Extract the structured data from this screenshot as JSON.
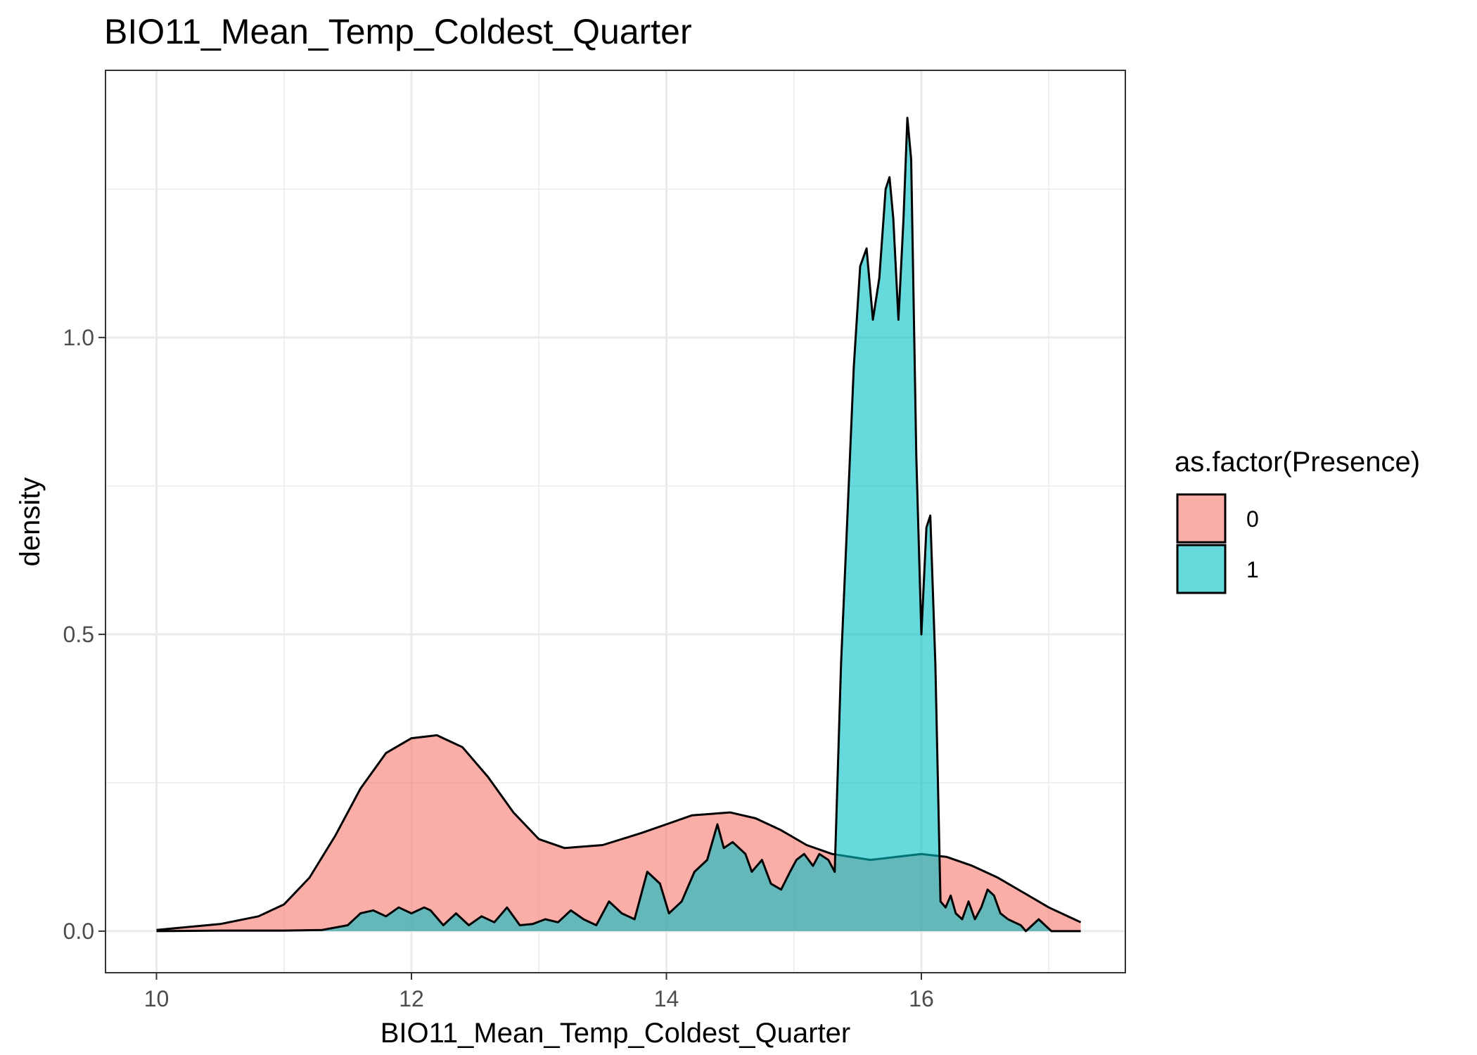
{
  "chart_data": {
    "type": "area",
    "subtype": "density",
    "title": "BIO11_Mean_Temp_Coldest_Quarter",
    "xlabel": "BIO11_Mean_Temp_Coldest_Quarter",
    "ylabel": "density",
    "xlim": [
      9.6,
      17.6
    ],
    "ylim": [
      -0.07,
      1.45
    ],
    "x_ticks": [
      10,
      12,
      14,
      16
    ],
    "x_tick_labels": [
      "10",
      "12",
      "14",
      "16"
    ],
    "y_ticks": [
      0.0,
      0.5,
      1.0
    ],
    "y_tick_labels": [
      "0.0",
      "0.5",
      "1.0"
    ],
    "x_minor_grid": [
      11,
      13,
      15,
      17
    ],
    "y_minor_grid": [
      0.25,
      0.75,
      1.25
    ],
    "grid": true,
    "legend": {
      "title": "as.factor(Presence)",
      "position": "right",
      "entries": [
        "0",
        "1"
      ]
    },
    "colors": {
      "series_0": "#F8766D",
      "series_1": "#00BFC4",
      "outline": "#000000",
      "grid": "#ebebeb",
      "panel_border": "#333333"
    },
    "fill_opacity": 0.6,
    "series": [
      {
        "name": "0",
        "x": [
          10.0,
          10.5,
          10.8,
          11.0,
          11.2,
          11.4,
          11.6,
          11.8,
          12.0,
          12.2,
          12.4,
          12.6,
          12.8,
          13.0,
          13.2,
          13.5,
          13.8,
          14.0,
          14.2,
          14.5,
          14.7,
          14.9,
          15.1,
          15.3,
          15.6,
          15.8,
          16.0,
          16.2,
          16.4,
          16.6,
          16.8,
          17.0,
          17.25
        ],
        "y": [
          0.002,
          0.012,
          0.025,
          0.045,
          0.09,
          0.16,
          0.24,
          0.3,
          0.325,
          0.33,
          0.31,
          0.26,
          0.2,
          0.155,
          0.14,
          0.145,
          0.165,
          0.18,
          0.195,
          0.2,
          0.19,
          0.17,
          0.145,
          0.13,
          0.12,
          0.125,
          0.13,
          0.125,
          0.11,
          0.09,
          0.065,
          0.04,
          0.015
        ]
      },
      {
        "name": "1",
        "x": [
          10.0,
          10.5,
          11.0,
          11.3,
          11.5,
          11.6,
          11.7,
          11.8,
          11.9,
          12.0,
          12.1,
          12.15,
          12.25,
          12.35,
          12.45,
          12.55,
          12.65,
          12.75,
          12.85,
          12.95,
          13.05,
          13.15,
          13.25,
          13.35,
          13.45,
          13.55,
          13.65,
          13.75,
          13.85,
          13.95,
          14.02,
          14.12,
          14.22,
          14.32,
          14.4,
          14.45,
          14.52,
          14.57,
          14.62,
          14.67,
          14.75,
          14.82,
          14.9,
          14.97,
          15.02,
          15.08,
          15.15,
          15.2,
          15.27,
          15.32,
          15.37,
          15.42,
          15.47,
          15.52,
          15.57,
          15.62,
          15.67,
          15.72,
          15.75,
          15.78,
          15.82,
          15.86,
          15.89,
          15.92,
          15.96,
          16.0,
          16.04,
          16.07,
          16.11,
          16.15,
          16.19,
          16.23,
          16.27,
          16.32,
          16.37,
          16.42,
          16.47,
          16.52,
          16.57,
          16.62,
          16.68,
          16.73,
          16.78,
          16.82,
          16.87,
          16.92,
          16.97,
          17.02,
          17.08,
          17.13,
          17.18,
          17.25
        ],
        "y": [
          0.0,
          0.001,
          0.001,
          0.002,
          0.01,
          0.03,
          0.035,
          0.025,
          0.04,
          0.03,
          0.04,
          0.035,
          0.01,
          0.03,
          0.01,
          0.025,
          0.015,
          0.04,
          0.01,
          0.012,
          0.02,
          0.015,
          0.035,
          0.02,
          0.01,
          0.05,
          0.03,
          0.02,
          0.1,
          0.08,
          0.03,
          0.05,
          0.1,
          0.12,
          0.18,
          0.14,
          0.15,
          0.14,
          0.13,
          0.1,
          0.12,
          0.08,
          0.07,
          0.1,
          0.12,
          0.13,
          0.11,
          0.13,
          0.12,
          0.1,
          0.45,
          0.7,
          0.95,
          1.12,
          1.15,
          1.03,
          1.1,
          1.25,
          1.27,
          1.2,
          1.03,
          1.2,
          1.37,
          1.3,
          0.8,
          0.5,
          0.68,
          0.7,
          0.45,
          0.05,
          0.04,
          0.06,
          0.03,
          0.02,
          0.05,
          0.02,
          0.04,
          0.07,
          0.06,
          0.03,
          0.02,
          0.015,
          0.01,
          0.0,
          0.01,
          0.02,
          0.01,
          0.0,
          0.0,
          0.0,
          0.0,
          0.0
        ]
      }
    ]
  }
}
